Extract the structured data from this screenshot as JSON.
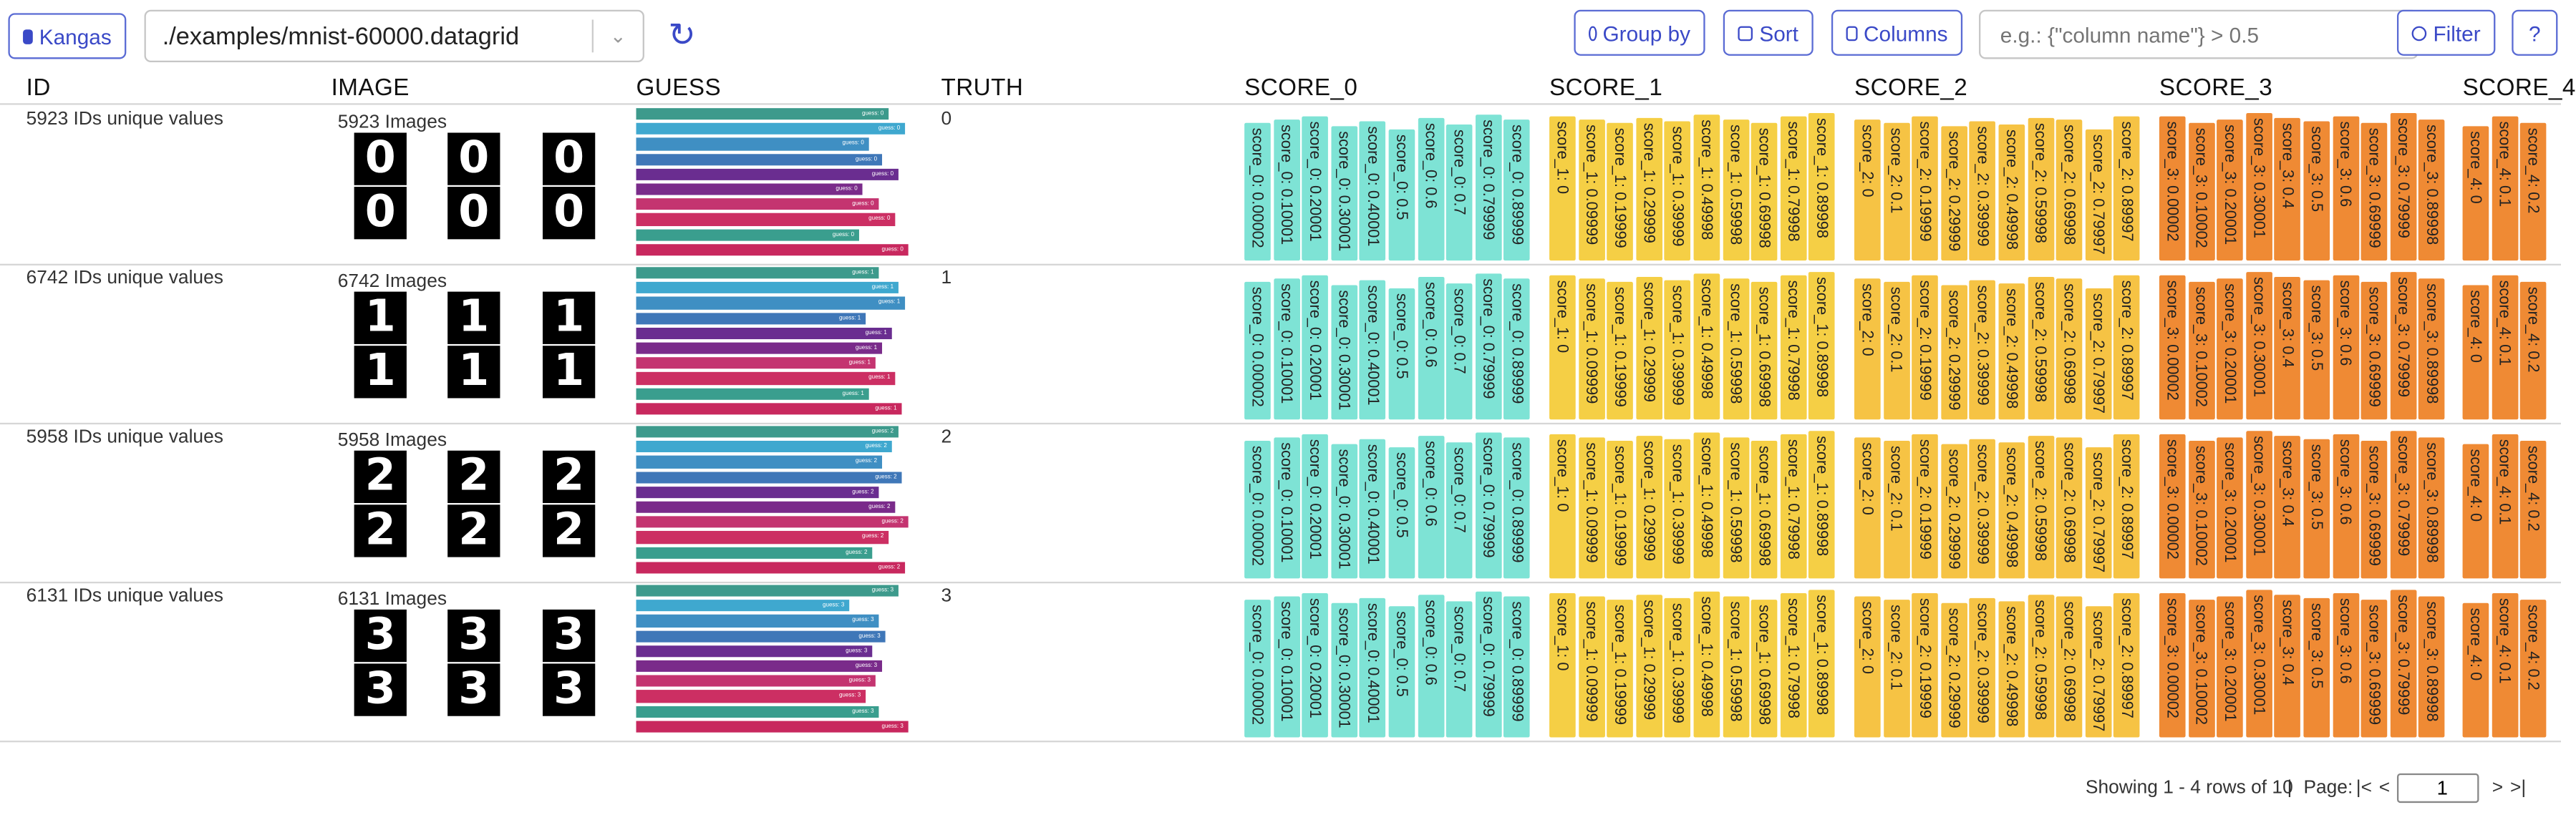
{
  "toolbar": {
    "kangas_label": "Kangas",
    "dataset_path": "./examples/mnist-60000.datagrid",
    "group_by_label": "Group by",
    "sort_label": "Sort",
    "columns_label": "Columns",
    "filter_placeholder": "e.g.: {\"column name\"} > 0.5",
    "filter_label": "Filter",
    "help_label": "?"
  },
  "columns": [
    "ID",
    "IMAGE",
    "GUESS",
    "TRUTH",
    "SCORE_0",
    "SCORE_1",
    "SCORE_2",
    "SCORE_3",
    "SCORE_4"
  ],
  "rows": [
    {
      "id_text": "5923 IDs unique values",
      "image_label": "5923 Images",
      "digit": "0",
      "truth": "0",
      "guess_widths": [
        154,
        164,
        142,
        150,
        160,
        138,
        148,
        158,
        136,
        166
      ],
      "guess_colors": [
        "#3d9a8c",
        "#3fa8cf",
        "#3f8fc3",
        "#3f77b8",
        "#6a2d90",
        "#7a2b8a",
        "#c43470",
        "#cc2f63",
        "#3a9e8e",
        "#c8285e"
      ],
      "guess_labels": [
        "guess: 0",
        "guess: 0",
        "guess: 0",
        "guess: 0",
        "guess: 0",
        "guess: 0",
        "guess: 0",
        "guess: 0",
        "guess: 0",
        "guess: 0"
      ]
    },
    {
      "id_text": "6742 IDs unique values",
      "image_label": "6742 Images",
      "digit": "1",
      "truth": "1",
      "guess_widths": [
        148,
        160,
        164,
        140,
        156,
        150,
        146,
        158,
        142,
        162
      ],
      "guess_colors": [
        "#3d9a8c",
        "#3fa8cf",
        "#3f8fc3",
        "#3f77b8",
        "#6a2d90",
        "#7a2b8a",
        "#c43470",
        "#cc2f63",
        "#3a9e8e",
        "#c8285e"
      ],
      "guess_labels": [
        "guess: 1",
        "guess: 1",
        "guess: 1",
        "guess: 1",
        "guess: 1",
        "guess: 1",
        "guess: 1",
        "guess: 1",
        "guess: 1",
        "guess: 1"
      ]
    },
    {
      "id_text": "5958 IDs unique values",
      "image_label": "5958 Images",
      "digit": "2",
      "truth": "2",
      "guess_widths": [
        160,
        156,
        150,
        162,
        148,
        158,
        166,
        154,
        144,
        164
      ],
      "guess_colors": [
        "#3d9a8c",
        "#3fa8cf",
        "#3f8fc3",
        "#3f77b8",
        "#6a2d90",
        "#7a2b8a",
        "#c43470",
        "#cc2f63",
        "#3a9e8e",
        "#c8285e"
      ],
      "guess_labels": [
        "guess: 2",
        "guess: 2",
        "guess: 2",
        "guess: 2",
        "guess: 2",
        "guess: 2",
        "guess: 2",
        "guess: 2",
        "guess: 2",
        "guess: 2"
      ]
    },
    {
      "id_text": "6131 IDs unique values",
      "image_label": "6131 Images",
      "digit": "3",
      "truth": "3",
      "guess_widths": [
        160,
        130,
        148,
        152,
        144,
        150,
        146,
        140,
        148,
        166
      ],
      "guess_colors": [
        "#3d9a8c",
        "#3fa8cf",
        "#3f8fc3",
        "#3f77b8",
        "#6a2d90",
        "#7a2b8a",
        "#c43470",
        "#cc2f63",
        "#3a9e8e",
        "#c8285e"
      ],
      "guess_labels": [
        "guess: 3",
        "guess: 3",
        "guess: 3",
        "guess: 3",
        "guess: 3",
        "guess: 3",
        "guess: 3",
        "guess: 3",
        "guess: 3",
        "guess: 3"
      ]
    }
  ],
  "score_colors": [
    "#7ee3d5",
    "#f5cf45",
    "#f6c344",
    "#ef8a34",
    "#ef8a34"
  ],
  "score_columns": [
    {
      "prefix": "score_0",
      "labels": [
        "score_0: 0.00002",
        "score_0: 0.10001",
        "score_0: 0.20001",
        "score_0: 0.30001",
        "score_0: 0.40001",
        "score_0: 0.5",
        "score_0: 0.6",
        "score_0: 0.7",
        "score_0: 0.79999",
        "score_0: 0.89999"
      ]
    },
    {
      "prefix": "score_1",
      "labels": [
        "score_1: 0",
        "score_1: 0.09999",
        "score_1: 0.19999",
        "score_1: 0.29999",
        "score_1: 0.39999",
        "score_1: 0.49998",
        "score_1: 0.59998",
        "score_1: 0.69998",
        "score_1: 0.79998",
        "score_1: 0.89998"
      ]
    },
    {
      "prefix": "score_2",
      "labels": [
        "score_2: 0",
        "score_2: 0.1",
        "score_2: 0.19999",
        "score_2: 0.29999",
        "score_2: 0.39999",
        "score_2: 0.49998",
        "score_2: 0.59998",
        "score_2: 0.69998",
        "score_2: 0.79997",
        "score_2: 0.89997"
      ]
    },
    {
      "prefix": "score_3",
      "labels": [
        "score_3: 0.00002",
        "score_3: 0.10002",
        "score_3: 0.20001",
        "score_3: 0.30001",
        "score_3: 0.4",
        "score_3: 0.5",
        "score_3: 0.6",
        "score_3: 0.69999",
        "score_3: 0.79999",
        "score_3: 0.89998"
      ]
    },
    {
      "prefix": "score_4",
      "labels": [
        "score_4: 0",
        "score_4: 0.1",
        "score_4: 0.2"
      ]
    }
  ],
  "footer": {
    "showing": "Showing 1 - 4 rows of 10",
    "sep": "|",
    "page_label": "Page:",
    "first": "|<",
    "prev": "<",
    "page_value": "1",
    "next": ">",
    "last": ">|"
  }
}
